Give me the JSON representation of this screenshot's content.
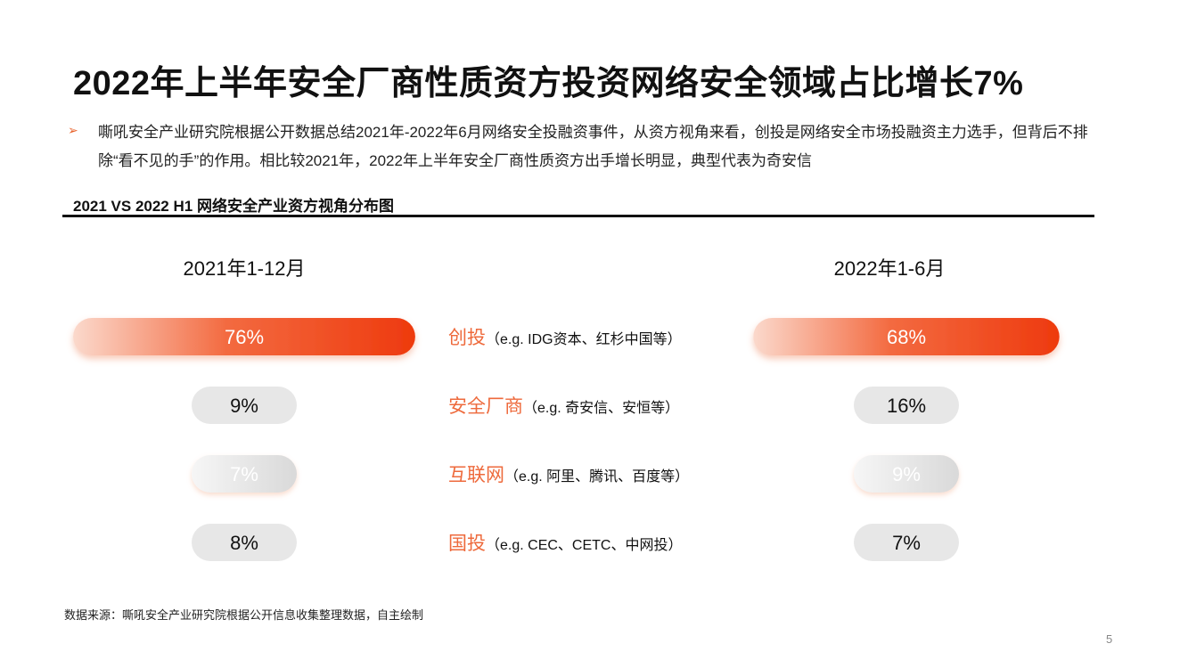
{
  "page": {
    "title": "2022年上半年安全厂商性质资方投资网络安全领域占比增长7%",
    "bullet_marker": "➢",
    "bullet_text": "嘶吼安全产业研究院根据公开数据总结2021年-2022年6月网络安全投融资事件，从资方视角来看，创投是网络安全市场投融资主力选手，但背后不排除“看不见的手”的作用。相比较2021年，2022年上半年安全厂商性质资方出手增长明显，典型代表为奇安信",
    "section_label": "2021 VS 2022 H1 网络安全产业资方视角分布图",
    "source": "数据来源：嘶吼安全产业研究院根据公开信息收集整理数据，自主绘制",
    "page_number": "5"
  },
  "colors": {
    "accent": "#ee3a0e",
    "category_label": "#ee6a3c",
    "pill_gray": "#e7e7e7",
    "text_dark": "#111111"
  },
  "chart_data": {
    "type": "bar",
    "title": "2021 VS 2022 H1 网络安全产业资方视角分布图",
    "categories": [
      {
        "name": "创投",
        "note": "（e.g. IDG资本、红杉中国等）"
      },
      {
        "name": "安全厂商",
        "note": "（e.g. 奇安信、安恒等）"
      },
      {
        "name": "互联网",
        "note": "（e.g. 阿里、腾讯、百度等）"
      },
      {
        "name": "国投",
        "note": "（e.g. CEC、CETC、中网投）"
      }
    ],
    "series": [
      {
        "name": "2021年1-12月",
        "values": [
          76,
          9,
          7,
          8
        ],
        "labels": [
          "76%",
          "9%",
          "7%",
          "8%"
        ]
      },
      {
        "name": "2022年1-6月",
        "values": [
          68,
          16,
          9,
          7
        ],
        "labels": [
          "68%",
          "16%",
          "9%",
          "7%"
        ]
      }
    ],
    "unit": "%",
    "highlighted_category_index": 0
  }
}
